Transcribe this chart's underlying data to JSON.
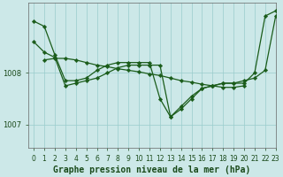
{
  "background_color": "#cce8e8",
  "plot_bg_color": "#cce8e8",
  "line_color": "#1a5c1a",
  "grid_color": "#99cccc",
  "axis_color": "#666666",
  "xlabel": "Graphe pression niveau de la mer (hPa)",
  "xlabel_fontsize": 7,
  "tick_fontsize": 5.5,
  "ylabel_ticks": [
    1007,
    1008
  ],
  "xlim": [
    -0.5,
    23
  ],
  "ylim": [
    1006.55,
    1009.35
  ],
  "series1_x": [
    0,
    1,
    2,
    3,
    4,
    5,
    6,
    7,
    8,
    9,
    10,
    11,
    12,
    13,
    14,
    15,
    16,
    17,
    18,
    19,
    20,
    21,
    22,
    23
  ],
  "series1_y": [
    1009.0,
    1008.9,
    1008.35,
    1007.85,
    1007.85,
    1007.9,
    1008.05,
    1008.15,
    1008.2,
    1008.2,
    1008.2,
    1008.2,
    1007.5,
    1007.15,
    1007.35,
    1007.55,
    1007.7,
    1007.75,
    1007.8,
    1007.8,
    1007.8,
    1008.0,
    1009.1,
    1009.2
  ],
  "series2_x": [
    0,
    1,
    2,
    3,
    4,
    5,
    6,
    7,
    8,
    9,
    10,
    11,
    12,
    13,
    14,
    15,
    16,
    17,
    18,
    19,
    20,
    21,
    22,
    23
  ],
  "series2_y": [
    1008.6,
    1008.4,
    1008.3,
    1007.75,
    1007.8,
    1007.85,
    1007.9,
    1008.0,
    1008.1,
    1008.15,
    1008.15,
    1008.15,
    1008.15,
    1007.15,
    1007.3,
    1007.5,
    1007.7,
    1007.75,
    1007.8,
    1007.8,
    1007.85,
    1007.9,
    1008.05,
    1009.1
  ],
  "series3_x": [
    1,
    2,
    3,
    4,
    5,
    6,
    7,
    8,
    9,
    10,
    11,
    12,
    13,
    14,
    15,
    16,
    17,
    18,
    19,
    20
  ],
  "series3_y": [
    1008.25,
    1008.28,
    1008.28,
    1008.25,
    1008.2,
    1008.15,
    1008.12,
    1008.08,
    1008.05,
    1008.02,
    1007.98,
    1007.95,
    1007.9,
    1007.85,
    1007.82,
    1007.78,
    1007.75,
    1007.72,
    1007.72,
    1007.75
  ]
}
